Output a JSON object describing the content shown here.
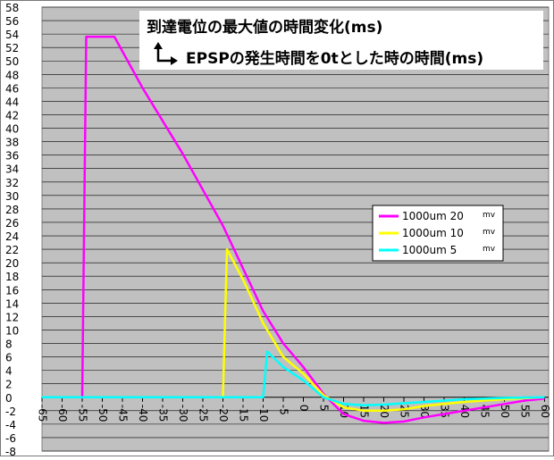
{
  "chart_data": {
    "type": "line",
    "title": "到達電位の最大値の時間変化(ms)",
    "subtitle": "EPSPの発生時間を0tとした時の時間(ms)",
    "subtitle_icon": "corner-arrow-icon",
    "xlabel": "",
    "ylabel": "",
    "xlim": [
      -65,
      61
    ],
    "ylim": [
      -8,
      58
    ],
    "x_ticks": [
      -65,
      -60,
      -55,
      -50,
      -45,
      -40,
      -35,
      -30,
      -25,
      -20,
      -15,
      -10,
      -5,
      0,
      5,
      10,
      15,
      20,
      25,
      30,
      35,
      40,
      45,
      50,
      55,
      60
    ],
    "y_ticks": [
      -8,
      -6,
      -4,
      -2,
      0,
      2,
      4,
      6,
      8,
      10,
      12,
      14,
      16,
      18,
      20,
      22,
      24,
      26,
      28,
      30,
      32,
      34,
      36,
      38,
      40,
      42,
      44,
      46,
      48,
      50,
      52,
      54,
      56,
      58
    ],
    "grid": true,
    "legend_position": "right-middle",
    "plot_background": "#c0c0c0",
    "series": [
      {
        "name": "1000um 20",
        "unit": "mv",
        "color": "#ff00ff",
        "points": [
          [
            -65,
            0
          ],
          [
            -55,
            0
          ],
          [
            -54,
            53.6
          ],
          [
            -47,
            53.6
          ],
          [
            -40,
            46
          ],
          [
            -30,
            36.2
          ],
          [
            -20,
            25.5
          ],
          [
            -10,
            12.8
          ],
          [
            -5,
            8
          ],
          [
            0,
            4.5
          ],
          [
            5,
            0.5
          ],
          [
            10,
            -2.5
          ],
          [
            15,
            -3.5
          ],
          [
            20,
            -3.8
          ],
          [
            25,
            -3.6
          ],
          [
            30,
            -3
          ],
          [
            40,
            -2
          ],
          [
            50,
            -1
          ],
          [
            55,
            -0.5
          ],
          [
            60,
            -0.2
          ]
        ]
      },
      {
        "name": "1000um 10",
        "unit": "mv",
        "color": "#ffff00",
        "points": [
          [
            -65,
            0
          ],
          [
            -20,
            0
          ],
          [
            -19,
            22
          ],
          [
            -15,
            17.5
          ],
          [
            -10,
            11
          ],
          [
            -5,
            6
          ],
          [
            0,
            3.5
          ],
          [
            5,
            0.3
          ],
          [
            10,
            -1.5
          ],
          [
            15,
            -2
          ],
          [
            20,
            -2
          ],
          [
            25,
            -1.8
          ],
          [
            30,
            -1.3
          ],
          [
            40,
            -0.7
          ],
          [
            50,
            -0.3
          ],
          [
            60,
            0
          ]
        ]
      },
      {
        "name": "1000um 5",
        "unit": "mv",
        "color": "#00ffff",
        "points": [
          [
            -65,
            0
          ],
          [
            -10,
            0
          ],
          [
            -9,
            6.8
          ],
          [
            -5,
            4.5
          ],
          [
            0,
            2.5
          ],
          [
            5,
            0
          ],
          [
            10,
            -1
          ],
          [
            15,
            -1.2
          ],
          [
            20,
            -1.1
          ],
          [
            30,
            -0.7
          ],
          [
            40,
            -0.3
          ],
          [
            50,
            -0.1
          ],
          [
            60,
            0
          ]
        ]
      }
    ]
  }
}
